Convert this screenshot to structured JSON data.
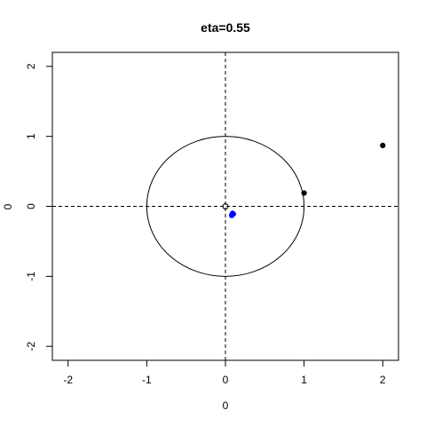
{
  "chart_data": {
    "type": "scatter",
    "title": "eta=0.55",
    "xlabel": "0",
    "ylabel": "0",
    "xlim": [
      -2.2,
      2.2
    ],
    "ylim": [
      -2.2,
      2.2
    ],
    "xticks": [
      -2,
      -1,
      0,
      1,
      2
    ],
    "yticks": [
      -2,
      -1,
      0,
      1,
      2
    ],
    "grid": false,
    "reference_lines": {
      "x": 0,
      "y": 0,
      "style": "dashed"
    },
    "unit_circle": {
      "center": [
        0,
        0
      ],
      "radius": 1
    },
    "series": [
      {
        "color": "#000000",
        "marker": "filled-circle",
        "points": [
          {
            "x": 2.0,
            "y": 0.87
          },
          {
            "x": 1.0,
            "y": 0.19
          }
        ]
      },
      {
        "color": "#0000ff",
        "marker": "filled-circle",
        "points": [
          {
            "x": 0.09,
            "y": -0.1
          },
          {
            "x": 0.08,
            "y": -0.13
          },
          {
            "x": 0.1,
            "y": -0.11
          }
        ]
      },
      {
        "color": "#000000",
        "marker": "open-circle",
        "points": [
          {
            "x": 0.0,
            "y": 0.0
          }
        ]
      }
    ]
  }
}
